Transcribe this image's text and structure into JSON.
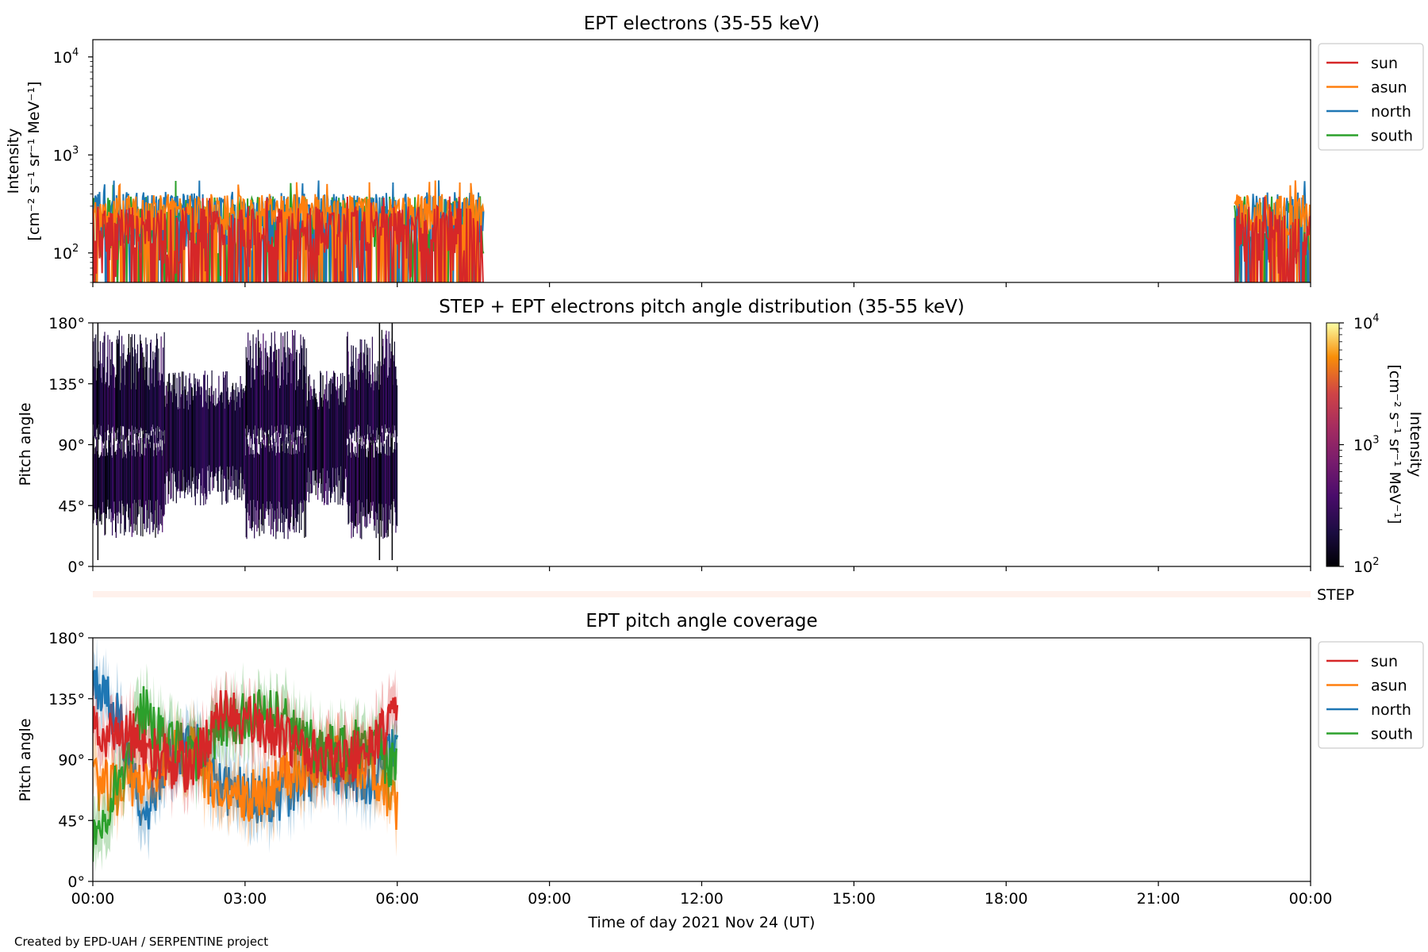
{
  "credit": "Created by EPD-UAH / SERPENTINE project",
  "xlabel": "Time of day 2021 Nov 24 (UT)",
  "x_ticks": [
    "00:00",
    "03:00",
    "06:00",
    "09:00",
    "12:00",
    "15:00",
    "18:00",
    "21:00",
    "00:00"
  ],
  "colors": {
    "sun": "#d62728",
    "asun": "#ff7f0e",
    "north": "#1f77b4",
    "south": "#2ca02c"
  },
  "legend_labels": [
    "sun",
    "asun",
    "north",
    "south"
  ],
  "chart_data": [
    {
      "type": "line",
      "title": "EPT electrons (35-55 keV)",
      "ylabel": [
        "Intensity",
        "[cm⁻² s⁻¹ sr⁻¹ MeV⁻¹]"
      ],
      "yscale": "log",
      "ylim": [
        50,
        15000
      ],
      "y_ticks": [
        {
          "base": "10",
          "exp": "2",
          "value": 100
        },
        {
          "base": "10",
          "exp": "3",
          "value": 1000
        },
        {
          "base": "10",
          "exp": "4",
          "value": 10000
        }
      ],
      "x_range_hours": [
        0,
        24
      ],
      "legend": "outside-right",
      "series": [
        {
          "name": "sun",
          "segments": [
            [
              0,
              7.7
            ],
            [
              22.5,
              24
            ]
          ],
          "typical_range": [
            50,
            300
          ],
          "peak": 380
        },
        {
          "name": "asun",
          "segments": [
            [
              0,
              7.7
            ],
            [
              22.5,
              24
            ]
          ],
          "typical_range": [
            150,
            400
          ],
          "peak": 560
        },
        {
          "name": "north",
          "segments": [
            [
              0,
              7.7
            ],
            [
              22.5,
              24
            ]
          ],
          "typical_range": [
            100,
            420
          ],
          "peak": 560
        },
        {
          "name": "south",
          "segments": [
            [
              0,
              7.7
            ],
            [
              22.5,
              24
            ]
          ],
          "typical_range": [
            80,
            380
          ],
          "peak": 550
        }
      ]
    },
    {
      "type": "heatmap",
      "title": "STEP + EPT electrons pitch angle distribution (35-55 keV)",
      "ylabel": "Pitch angle",
      "ylim": [
        0,
        180
      ],
      "y_ticks": [
        "0°",
        "45°",
        "90°",
        "135°",
        "180°"
      ],
      "x_range_hours": [
        0,
        24
      ],
      "data_extent_hours": [
        0,
        6
      ],
      "colorscale": "inferno",
      "color_range": [
        100,
        10000
      ],
      "colorbar_ticks": [
        {
          "base": "10",
          "exp": "2"
        },
        {
          "base": "10",
          "exp": "3"
        },
        {
          "base": "10",
          "exp": "4"
        }
      ],
      "colorbar_label": [
        "Intensity",
        "[cm⁻² s⁻¹ sr⁻¹ MeV⁻¹]"
      ],
      "strip_label": "STEP"
    },
    {
      "type": "line",
      "title": "EPT pitch angle coverage",
      "ylabel": "Pitch angle",
      "ylim": [
        0,
        180
      ],
      "y_ticks": [
        "0°",
        "45°",
        "90°",
        "135°",
        "180°"
      ],
      "x_range_hours": [
        0,
        24
      ],
      "legend": "outside-right",
      "series": [
        {
          "name": "sun",
          "x": [
            0,
            0.5,
            1,
            1.5,
            2,
            2.5,
            3,
            3.5,
            4,
            4.5,
            5,
            5.5,
            6
          ],
          "y": [
            110,
            112,
            100,
            88,
            84,
            130,
            118,
            113,
            100,
            90,
            92,
            96,
            130
          ]
        },
        {
          "name": "asun",
          "x": [
            0,
            0.5,
            1,
            1.5,
            2,
            2.5,
            3,
            3.5,
            4,
            4.5,
            5,
            5.5,
            6
          ],
          "y": [
            72,
            68,
            75,
            92,
            95,
            55,
            63,
            68,
            82,
            90,
            88,
            85,
            50
          ]
        },
        {
          "name": "north",
          "x": [
            0,
            0.5,
            1,
            1.5,
            2,
            2.5,
            3,
            3.5,
            4,
            4.5,
            5,
            5.5,
            6
          ],
          "y": [
            150,
            120,
            50,
            90,
            100,
            70,
            65,
            60,
            70,
            85,
            80,
            75,
            100
          ]
        },
        {
          "name": "south",
          "x": [
            0,
            0.5,
            1,
            1.5,
            2,
            2.5,
            3,
            3.5,
            4,
            4.5,
            5,
            5.5,
            6
          ],
          "y": [
            30,
            75,
            125,
            105,
            90,
            115,
            120,
            125,
            110,
            95,
            100,
            105,
            80
          ]
        }
      ]
    }
  ]
}
